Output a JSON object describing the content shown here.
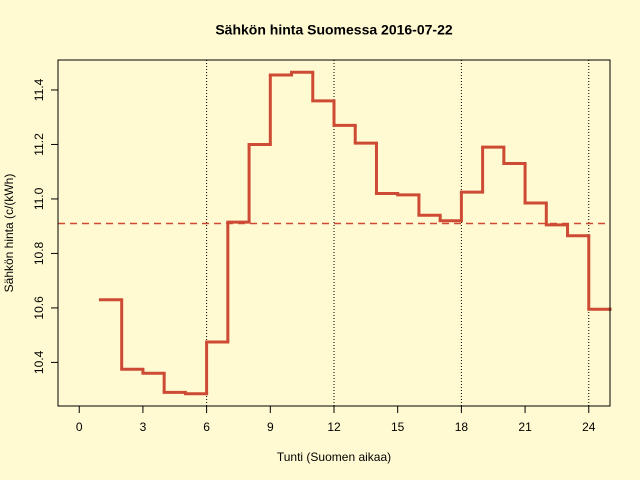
{
  "chart_data": {
    "type": "step",
    "title": "Sähkön hinta Suomessa 2016-07-22",
    "x_label": "Tunti (Suomen aikaa)",
    "y_label": "Sähkön hinta (c/(kWh)",
    "x": [
      1,
      2,
      3,
      4,
      5,
      6,
      7,
      8,
      9,
      10,
      11,
      12,
      13,
      14,
      15,
      16,
      17,
      18,
      19,
      20,
      21,
      22,
      23,
      24,
      25
    ],
    "values": [
      10.63,
      10.375,
      10.36,
      10.29,
      10.285,
      10.475,
      10.915,
      11.2,
      11.455,
      11.465,
      11.36,
      11.27,
      11.205,
      11.02,
      11.015,
      10.94,
      10.92,
      11.025,
      11.19,
      11.13,
      10.985,
      10.905,
      10.865,
      10.595,
      10.595
    ],
    "color": "#cd4b34",
    "hline": 10.91,
    "vlines": [
      6,
      12,
      18,
      24
    ],
    "xlim": [
      -1,
      25
    ],
    "ylim": [
      10.24,
      11.51
    ],
    "xticks": [
      0,
      3,
      6,
      9,
      12,
      15,
      18,
      21,
      24
    ],
    "yticks": [
      10.4,
      10.6,
      10.8,
      {
        "value": 11,
        "label": "11.0"
      },
      11.2,
      11.4
    ]
  }
}
